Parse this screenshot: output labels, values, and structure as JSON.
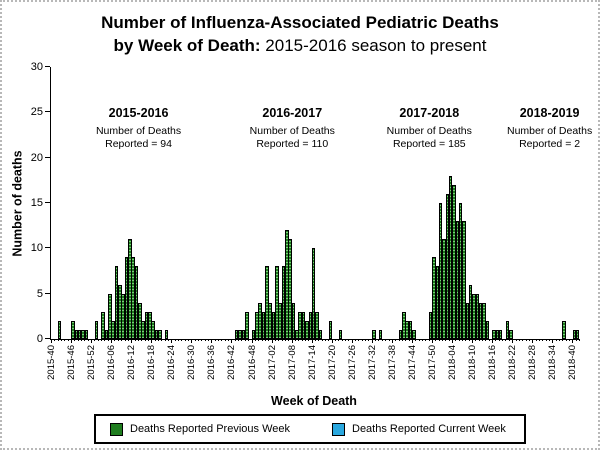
{
  "figure": {
    "title_line1": "Number of Influenza-Associated Pediatric Deaths",
    "title_line2_bold": "by Week of Death:",
    "title_line2_rest": " 2015-2016 season to present"
  },
  "axes": {
    "y_label": "Number of deaths",
    "x_label": "Week of Death",
    "y_ticks": [
      0,
      5,
      10,
      15,
      20,
      25,
      30
    ],
    "x_tick_labels": [
      "2015-40",
      "2015-46",
      "2015-52",
      "2016-06",
      "2016-12",
      "2016-18",
      "2016-24",
      "2016-30",
      "2016-36",
      "2016-42",
      "2016-48",
      "2017-02",
      "2017-08",
      "2017-14",
      "2017-20",
      "2017-26",
      "2017-32",
      "2017-38",
      "2017-44",
      "2017-50",
      "2018-04",
      "2018-10",
      "2018-16",
      "2018-22",
      "2018-28",
      "2018-34",
      "2018-40"
    ]
  },
  "legend": [
    {
      "label": "Deaths Reported Previous Week",
      "color": "#1f7d1f"
    },
    {
      "label": "Deaths Reported Current Week",
      "color": "#2aa8df"
    }
  ],
  "chart_data": {
    "type": "bar",
    "title": "Number of Influenza-Associated Pediatric Deaths by Week of Death: 2015-2016 season to present",
    "xlabel": "Week of Death",
    "ylabel": "Number of deaths",
    "ylim": [
      0,
      30
    ],
    "x_axis_start_week": "2015-40",
    "x_axis_end_week": "2018-42",
    "grid": false,
    "bar_color_previous_week": "#1f7d1f",
    "bar_color_current_week": "#2aa8df",
    "current_week_bars": "none visible",
    "seasons": [
      {
        "name": "2015-2016",
        "note_line1": "Number of Deaths",
        "note_line2": "Reported = 94",
        "total_reported": 94,
        "anchor_week": "2016-14",
        "points": {
          "2015-42": 2,
          "2015-46": 2,
          "2015-47": 1,
          "2015-48": 1,
          "2015-49": 1,
          "2015-50": 1,
          "2016-01": 2,
          "2016-03": 3,
          "2016-04": 1,
          "2016-05": 5,
          "2016-06": 2,
          "2016-07": 8,
          "2016-08": 6,
          "2016-09": 5,
          "2016-10": 9,
          "2016-11": 11,
          "2016-12": 9,
          "2016-13": 8,
          "2016-14": 4,
          "2016-15": 2,
          "2016-16": 3,
          "2016-17": 3,
          "2016-18": 2,
          "2016-19": 1,
          "2016-20": 1,
          "2016-22": 1
        }
      },
      {
        "name": "2016-2017",
        "note_line1": "Number of Deaths",
        "note_line2": "Reported = 110",
        "total_reported": 110,
        "anchor_week": "2017-08",
        "points": {
          "2016-43": 1,
          "2016-44": 1,
          "2016-45": 1,
          "2016-46": 3,
          "2016-48": 1,
          "2016-49": 3,
          "2016-50": 4,
          "2016-51": 3,
          "2016-52": 8,
          "2017-01": 4,
          "2017-02": 3,
          "2017-03": 8,
          "2017-04": 4,
          "2017-05": 8,
          "2017-06": 12,
          "2017-07": 11,
          "2017-08": 4,
          "2017-09": 1,
          "2017-10": 3,
          "2017-11": 3,
          "2017-12": 2,
          "2017-13": 3,
          "2017-14": 10,
          "2017-15": 3,
          "2017-16": 1,
          "2017-19": 2,
          "2017-22": 1,
          "2017-32": 1,
          "2017-34": 1
        }
      },
      {
        "name": "2017-2018",
        "note_line1": "Number of Deaths",
        "note_line2": "Reported = 185",
        "total_reported": 185,
        "anchor_week": "2017-49",
        "points": {
          "2017-40": 1,
          "2017-41": 3,
          "2017-42": 2,
          "2017-43": 2,
          "2017-44": 1,
          "2017-49": 3,
          "2017-50": 9,
          "2017-51": 8,
          "2017-52": 15,
          "2018-01": 11,
          "2018-02": 16,
          "2018-03": 18,
          "2018-04": 17,
          "2018-05": 13,
          "2018-06": 15,
          "2018-07": 13,
          "2018-08": 4,
          "2018-09": 6,
          "2018-10": 5,
          "2018-11": 5,
          "2018-12": 4,
          "2018-13": 4,
          "2018-14": 2,
          "2018-16": 1,
          "2018-17": 1,
          "2018-18": 1,
          "2018-20": 2,
          "2018-21": 1,
          "2018-37": 2
        }
      },
      {
        "name": "2018-2019",
        "note_line1": "Number of Deaths",
        "note_line2": "Reported = 2",
        "total_reported": 2,
        "anchor_week": "2018-33",
        "points": {
          "2018-40": 1,
          "2018-41": 1
        }
      }
    ]
  }
}
